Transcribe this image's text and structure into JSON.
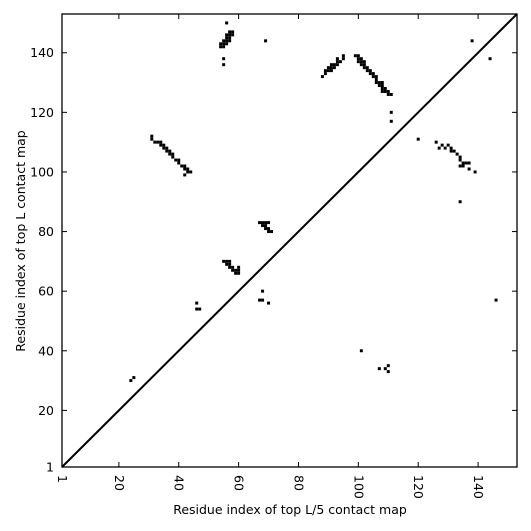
{
  "chart_data": {
    "type": "scatter",
    "title": "",
    "xlabel": "Residue index of top L/5 contact map",
    "ylabel": "Residue index of top L contact map",
    "xlim": [
      1,
      153
    ],
    "ylim": [
      1,
      153
    ],
    "xticks": [
      1,
      20,
      40,
      60,
      80,
      100,
      120,
      140
    ],
    "yticks": [
      1,
      20,
      40,
      60,
      80,
      100,
      120,
      140
    ],
    "grid": false,
    "diagonal": true,
    "series": [
      {
        "role": "upper-left (top L/5 contacts)",
        "color": "#000000",
        "points": [
          [
            54,
            142
          ],
          [
            55,
            142
          ],
          [
            54,
            143
          ],
          [
            55,
            143
          ],
          [
            56,
            143
          ],
          [
            55,
            144
          ],
          [
            56,
            144
          ],
          [
            57,
            144
          ],
          [
            56,
            145
          ],
          [
            57,
            145
          ],
          [
            56,
            146
          ],
          [
            57,
            146
          ],
          [
            58,
            146
          ],
          [
            57,
            147
          ],
          [
            58,
            147
          ],
          [
            56,
            150
          ],
          [
            55,
            138
          ],
          [
            55,
            136
          ],
          [
            31,
            111
          ],
          [
            31,
            112
          ],
          [
            32,
            110
          ],
          [
            33,
            110
          ],
          [
            34,
            110
          ],
          [
            34,
            109
          ],
          [
            35,
            109
          ],
          [
            35,
            108
          ],
          [
            36,
            108
          ],
          [
            36,
            107
          ],
          [
            37,
            107
          ],
          [
            37,
            106
          ],
          [
            38,
            106
          ],
          [
            38,
            105
          ],
          [
            39,
            104
          ],
          [
            40,
            104
          ],
          [
            40,
            103
          ],
          [
            41,
            102
          ],
          [
            42,
            102
          ],
          [
            42,
            101
          ],
          [
            43,
            101
          ],
          [
            43,
            100
          ],
          [
            44,
            100
          ],
          [
            42,
            99
          ],
          [
            46,
            56
          ],
          [
            46,
            54
          ],
          [
            47,
            54
          ],
          [
            24,
            30
          ],
          [
            25,
            31
          ],
          [
            55,
            70
          ],
          [
            56,
            70
          ],
          [
            57,
            70
          ],
          [
            56,
            69
          ],
          [
            57,
            69
          ],
          [
            57,
            68
          ],
          [
            58,
            68
          ],
          [
            58,
            67
          ],
          [
            59,
            67
          ],
          [
            59,
            66
          ],
          [
            60,
            66
          ],
          [
            60,
            67
          ],
          [
            60,
            68
          ],
          [
            67,
            83
          ],
          [
            68,
            83
          ],
          [
            69,
            83
          ],
          [
            70,
            83
          ],
          [
            68,
            82
          ],
          [
            69,
            82
          ],
          [
            69,
            81
          ],
          [
            70,
            81
          ],
          [
            70,
            80
          ],
          [
            71,
            80
          ],
          [
            68,
            60
          ],
          [
            67,
            57
          ],
          [
            68,
            57
          ],
          [
            70,
            56
          ],
          [
            69,
            144
          ],
          [
            88,
            132
          ],
          [
            89,
            133
          ],
          [
            89,
            134
          ],
          [
            90,
            134
          ],
          [
            91,
            134
          ],
          [
            90,
            135
          ],
          [
            91,
            135
          ],
          [
            92,
            135
          ],
          [
            92,
            136
          ],
          [
            93,
            136
          ],
          [
            93,
            137
          ],
          [
            94,
            137
          ],
          [
            95,
            138
          ],
          [
            95,
            139
          ],
          [
            91,
            136
          ],
          [
            93,
            138
          ]
        ]
      },
      {
        "role": "lower-right (top L contacts)",
        "color": "#000000",
        "points": [
          [
            99,
            139
          ],
          [
            100,
            139
          ],
          [
            100,
            138
          ],
          [
            101,
            138
          ],
          [
            100,
            137
          ],
          [
            101,
            137
          ],
          [
            102,
            137
          ],
          [
            101,
            136
          ],
          [
            102,
            136
          ],
          [
            103,
            135
          ],
          [
            102,
            135
          ],
          [
            103,
            134
          ],
          [
            104,
            134
          ],
          [
            104,
            133
          ],
          [
            105,
            133
          ],
          [
            105,
            132
          ],
          [
            106,
            132
          ],
          [
            106,
            131
          ],
          [
            106,
            130
          ],
          [
            107,
            130
          ],
          [
            108,
            130
          ],
          [
            107,
            129
          ],
          [
            108,
            129
          ],
          [
            108,
            128
          ],
          [
            109,
            128
          ],
          [
            108,
            127
          ],
          [
            109,
            127
          ],
          [
            110,
            127
          ],
          [
            110,
            126
          ],
          [
            111,
            126
          ],
          [
            111,
            120
          ],
          [
            111,
            117
          ],
          [
            120,
            111
          ],
          [
            126,
            110
          ],
          [
            127,
            108
          ],
          [
            128,
            109
          ],
          [
            129,
            108
          ],
          [
            130,
            109
          ],
          [
            131,
            107
          ],
          [
            131,
            108
          ],
          [
            132,
            107
          ],
          [
            133,
            106
          ],
          [
            134,
            105
          ],
          [
            134,
            104
          ],
          [
            135,
            103
          ],
          [
            136,
            103
          ],
          [
            134,
            102
          ],
          [
            135,
            102
          ],
          [
            137,
            103
          ],
          [
            137,
            101
          ],
          [
            139,
            100
          ],
          [
            134,
            90
          ],
          [
            146,
            57
          ],
          [
            144,
            138
          ],
          [
            138,
            144
          ],
          [
            101,
            40
          ],
          [
            107,
            34
          ],
          [
            110,
            35
          ],
          [
            110,
            33
          ],
          [
            109,
            34
          ]
        ]
      }
    ]
  }
}
